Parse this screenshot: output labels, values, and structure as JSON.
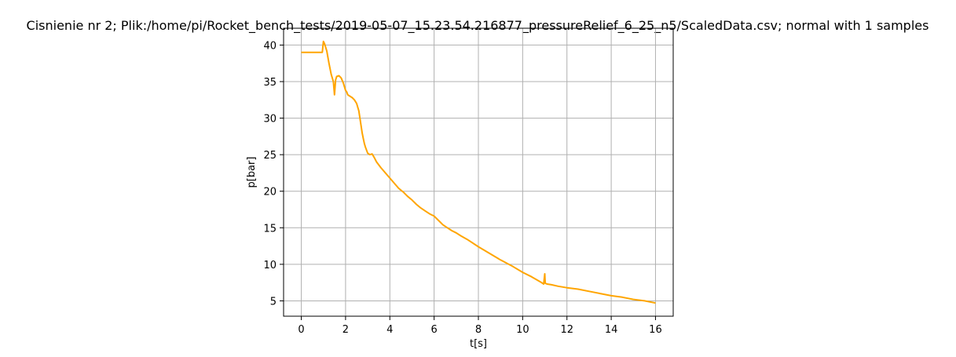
{
  "chart_data": {
    "type": "line",
    "title": "Cisnienie nr 2; Plik:/home/pi/Rocket_bench_tests/2019-05-07_15.23.54.216877_pressureRelief_6_25_n5/ScaledData.csv; normal with 1 samples",
    "xlabel": "t[s]",
    "ylabel": "p[bar]",
    "xlim": [
      -0.8,
      16.8
    ],
    "ylim": [
      2.9,
      42.3
    ],
    "xticks": [
      0,
      2,
      4,
      6,
      8,
      10,
      12,
      14,
      16
    ],
    "yticks": [
      5,
      10,
      15,
      20,
      25,
      30,
      35,
      40
    ],
    "grid": true,
    "color": "#ffa500",
    "series": [
      {
        "x": [
          0,
          0.5,
          0.95,
          1.0,
          1.05,
          1.15,
          1.25,
          1.35,
          1.45,
          1.5,
          1.55,
          1.6,
          1.7,
          1.8,
          1.9,
          2.0,
          2.05,
          2.1,
          2.2,
          2.3,
          2.4,
          2.5,
          2.6,
          2.7,
          2.75,
          2.8,
          2.85,
          2.9,
          3.0,
          3.1,
          3.2,
          3.3,
          3.4,
          3.6,
          3.8,
          4.0,
          4.2,
          4.4,
          4.6,
          4.8,
          5.0,
          5.2,
          5.4,
          5.6,
          5.8,
          6.0,
          6.2,
          6.4,
          6.6,
          6.8,
          7.0,
          7.2,
          7.5,
          8.0,
          8.5,
          9.0,
          9.5,
          10.0,
          10.4,
          10.8,
          10.95,
          11.0,
          11.02,
          11.1,
          11.3,
          11.6,
          12.0,
          12.5,
          13.0,
          13.5,
          14.0,
          14.5,
          15.0,
          15.5,
          16.0
        ],
        "y": [
          39.0,
          39.0,
          39.0,
          40.5,
          40.2,
          39.2,
          37.5,
          36.0,
          35.0,
          33.2,
          35.2,
          35.7,
          35.8,
          35.5,
          34.8,
          33.8,
          33.6,
          33.2,
          33.0,
          32.8,
          32.5,
          32.0,
          31.0,
          29.0,
          28.0,
          27.2,
          26.5,
          26.0,
          25.2,
          25.0,
          25.1,
          24.6,
          24.0,
          23.2,
          22.5,
          21.8,
          21.1,
          20.4,
          19.9,
          19.3,
          18.8,
          18.2,
          17.7,
          17.3,
          16.9,
          16.6,
          16.0,
          15.4,
          15.0,
          14.6,
          14.3,
          13.9,
          13.4,
          12.4,
          11.5,
          10.6,
          9.8,
          8.9,
          8.3,
          7.6,
          7.3,
          8.7,
          7.4,
          7.3,
          7.2,
          7.0,
          6.8,
          6.6,
          6.3,
          6.0,
          5.7,
          5.5,
          5.2,
          5.0,
          4.7
        ]
      }
    ]
  }
}
